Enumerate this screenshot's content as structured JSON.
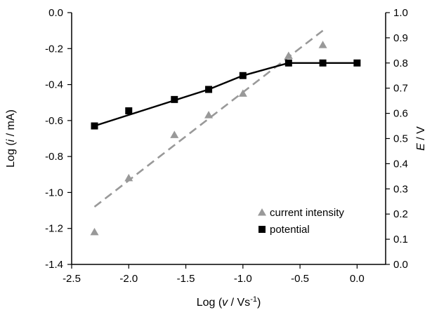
{
  "chart_data": {
    "type": "scatter",
    "title": "",
    "x_label": {
      "prefix": "Log (",
      "italic": "v",
      "suffix": " / Vs",
      "superscript": "-1",
      "close": ")"
    },
    "y_left_label": {
      "prefix": "Log (",
      "italic": "i",
      "suffix": " / mA)"
    },
    "y_right_label": {
      "italic": "E",
      "suffix": " / V"
    },
    "x_range": [
      -2.5,
      0.25
    ],
    "y_left_range": [
      -1.4,
      0.0
    ],
    "y_right_range": [
      0.0,
      1.0
    ],
    "x_ticks": [
      -2.5,
      -2.0,
      -1.5,
      -1.0,
      -0.5,
      0.0
    ],
    "x_tick_labels": [
      "-2.5",
      "-2.0",
      "-1.5",
      "-1.0",
      "-0.5",
      "0.0"
    ],
    "y_left_ticks": [
      0.0,
      -0.2,
      -0.4,
      -0.6,
      -0.8,
      -1.0,
      -1.2,
      -1.4
    ],
    "y_left_tick_labels": [
      "0.0",
      "-0.2",
      "-0.4",
      "-0.6",
      "-0.8",
      "-1.0",
      "-1.2",
      "-1.4"
    ],
    "y_right_ticks": [
      1.0,
      0.9,
      0.8,
      0.7,
      0.6,
      0.5,
      0.4,
      0.3,
      0.2,
      0.1,
      0.0
    ],
    "y_right_tick_labels": [
      "1.0",
      "0.9",
      "0.8",
      "0.7",
      "0.6",
      "0.5",
      "0.4",
      "0.3",
      "0.2",
      "0.1",
      "0.0"
    ],
    "grid": false,
    "legend_position": "bottom-right",
    "series": [
      {
        "name": "current intensity",
        "axis": "left",
        "marker": "triangle",
        "color": "#999999",
        "x": [
          -2.3,
          -2.0,
          -1.6,
          -1.3,
          -1.0,
          -0.6,
          -0.3
        ],
        "y": [
          -1.22,
          -0.92,
          -0.68,
          -0.57,
          -0.45,
          -0.24,
          -0.18
        ]
      },
      {
        "name": "potential",
        "axis": "right",
        "marker": "square",
        "color": "#000000",
        "x": [
          -2.3,
          -2.0,
          -1.6,
          -1.3,
          -1.0,
          -0.6,
          -0.3,
          0.0
        ],
        "y": [
          0.55,
          0.61,
          0.655,
          0.695,
          0.75,
          0.8,
          0.8,
          0.8
        ]
      }
    ],
    "trendlines": [
      {
        "series": "current intensity",
        "axis": "left",
        "style": "dashed",
        "color": "#999999",
        "x": [
          -2.3,
          -0.3
        ],
        "y": [
          -1.08,
          -0.1
        ]
      },
      {
        "series": "potential",
        "axis": "right",
        "style": "solid",
        "color": "#000000",
        "x": [
          -2.3,
          -1.3,
          -1.0,
          -0.6,
          0.0
        ],
        "y": [
          0.55,
          0.695,
          0.75,
          0.8,
          0.8
        ]
      }
    ]
  }
}
